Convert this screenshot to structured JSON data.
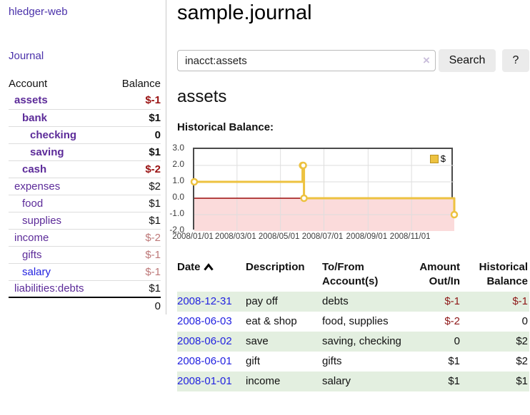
{
  "app": {
    "brand": "hledger-web",
    "nav_journal": "Journal"
  },
  "sidebar": {
    "header": {
      "account": "Account",
      "balance": "Balance"
    },
    "rows": [
      {
        "name": "assets",
        "level": 0,
        "bold": true,
        "blue": false,
        "balance": "$-1"
      },
      {
        "name": "bank",
        "level": 1,
        "bold": true,
        "blue": false,
        "balance": "$1"
      },
      {
        "name": "checking",
        "level": 2,
        "bold": true,
        "blue": false,
        "balance": "0"
      },
      {
        "name": "saving",
        "level": 2,
        "bold": true,
        "blue": false,
        "balance": "$1"
      },
      {
        "name": "cash",
        "level": 1,
        "bold": true,
        "blue": false,
        "balance": "$-2"
      },
      {
        "name": "expenses",
        "level": 0,
        "bold": false,
        "blue": false,
        "balance": "$2"
      },
      {
        "name": "food",
        "level": 1,
        "bold": false,
        "blue": false,
        "balance": "$1"
      },
      {
        "name": "supplies",
        "level": 1,
        "bold": false,
        "blue": false,
        "balance": "$1"
      },
      {
        "name": "income",
        "level": 0,
        "bold": false,
        "blue": false,
        "balance": "$-2"
      },
      {
        "name": "gifts",
        "level": 1,
        "bold": false,
        "blue": false,
        "balance": "$-1"
      },
      {
        "name": "salary",
        "level": 1,
        "bold": false,
        "blue": true,
        "balance": "$-1"
      },
      {
        "name": "liabilities:debts",
        "level": 0,
        "bold": false,
        "blue": false,
        "balance": "$1"
      }
    ],
    "total": "0"
  },
  "main": {
    "title": "sample.journal",
    "search": {
      "value": "inacct:assets",
      "clear_icon": "×",
      "button": "Search",
      "help_button": "?"
    },
    "account_heading": "assets",
    "chart_label": "Historical Balance:"
  },
  "chart_data": {
    "type": "line",
    "title": "Historical Balance",
    "legend": [
      {
        "label": "$",
        "color": "#edc240"
      }
    ],
    "legend_position": "top-right",
    "grid": true,
    "ylim": [
      -2.0,
      3.0
    ],
    "y_ticks": [
      "3.0",
      "2.0",
      "1.0",
      "0.0",
      "-1.0",
      "-2.0"
    ],
    "x_ticks": [
      {
        "label": "2008/01/01",
        "date": "2008-01-01"
      },
      {
        "label": "2008/03/01",
        "date": "2008-03-01"
      },
      {
        "label": "2008/05/01",
        "date": "2008-05-01"
      },
      {
        "label": "2008/07/01",
        "date": "2008-07-01"
      },
      {
        "label": "2008/09/01",
        "date": "2008-09-01"
      },
      {
        "label": "2008/11/01",
        "date": "2008-11-01"
      }
    ],
    "x_range": [
      "2008-01-01",
      "2008-12-31"
    ],
    "series": [
      {
        "name": "$",
        "step": "after",
        "points": [
          [
            "2008-01-01",
            1
          ],
          [
            "2008-06-01",
            2
          ],
          [
            "2008-06-02",
            2
          ],
          [
            "2008-06-03",
            0
          ],
          [
            "2008-12-31",
            -1
          ]
        ]
      }
    ],
    "colors": {
      "line": "#edc240",
      "marker_fill": "#ffffff",
      "zero_line": "#9c0a0a",
      "negative_region": "#fbdbdb",
      "gridline": "#dedede",
      "border": "#4a4a4a"
    }
  },
  "transactions": {
    "headers": {
      "date": "Date",
      "sort_icon": "chevron-up",
      "description": "Description",
      "accounts": "To/From Account(s)",
      "amount": "Amount Out/In",
      "balance": "Historical Balance"
    },
    "rows": [
      {
        "date": "2008-12-31",
        "description": "pay off",
        "accounts": "debts",
        "amount": "$-1",
        "balance": "$-1"
      },
      {
        "date": "2008-06-03",
        "description": "eat & shop",
        "accounts": "food, supplies",
        "amount": "$-2",
        "balance": "0"
      },
      {
        "date": "2008-06-02",
        "description": "save",
        "accounts": "saving, checking",
        "amount": "0",
        "balance": "$2"
      },
      {
        "date": "2008-06-01",
        "description": "gift",
        "accounts": "gifts",
        "amount": "$1",
        "balance": "$2"
      },
      {
        "date": "2008-01-01",
        "description": "income",
        "accounts": "salary",
        "amount": "$1",
        "balance": "$1"
      }
    ]
  }
}
